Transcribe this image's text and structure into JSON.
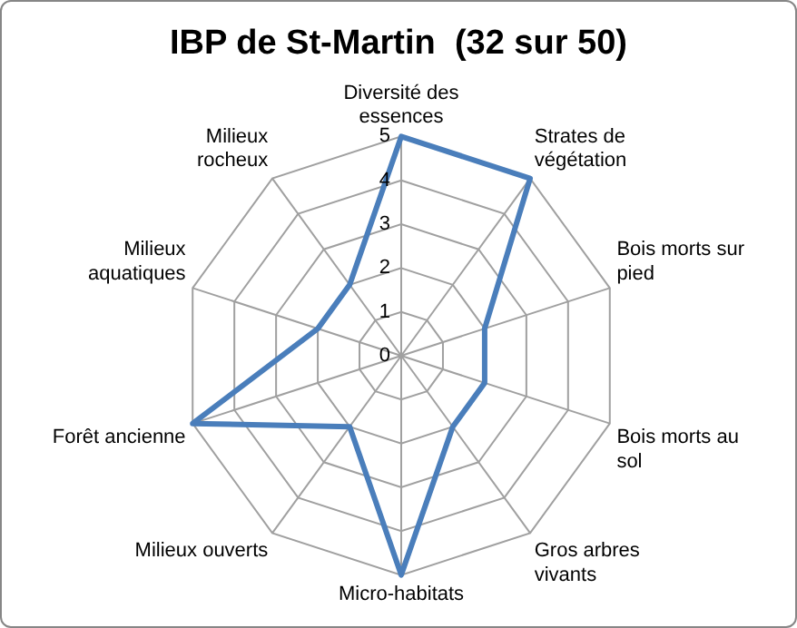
{
  "chart_data": {
    "type": "radar",
    "title": "IBP de St-Martin  (32 sur 50)",
    "categories": [
      "Diversité des\nessences",
      "Strates de\nvégétation",
      "Bois morts sur\npied",
      "Bois morts au\nsol",
      "Gros arbres\nvivants",
      "Micro-habitats",
      "Milieux ouverts",
      "Forêt ancienne",
      "Milieux\naquatiques",
      "Milieux\nrocheux"
    ],
    "series": [
      {
        "color": "#4a7ebb",
        "values": [
          5,
          5,
          2,
          2,
          2,
          5,
          2,
          5,
          2,
          2
        ]
      }
    ],
    "ylim": [
      0,
      5
    ],
    "yticks": [
      0,
      1,
      2,
      3,
      4,
      5
    ],
    "grid": true,
    "legend": false,
    "marker": "none",
    "line_style": "solid"
  }
}
